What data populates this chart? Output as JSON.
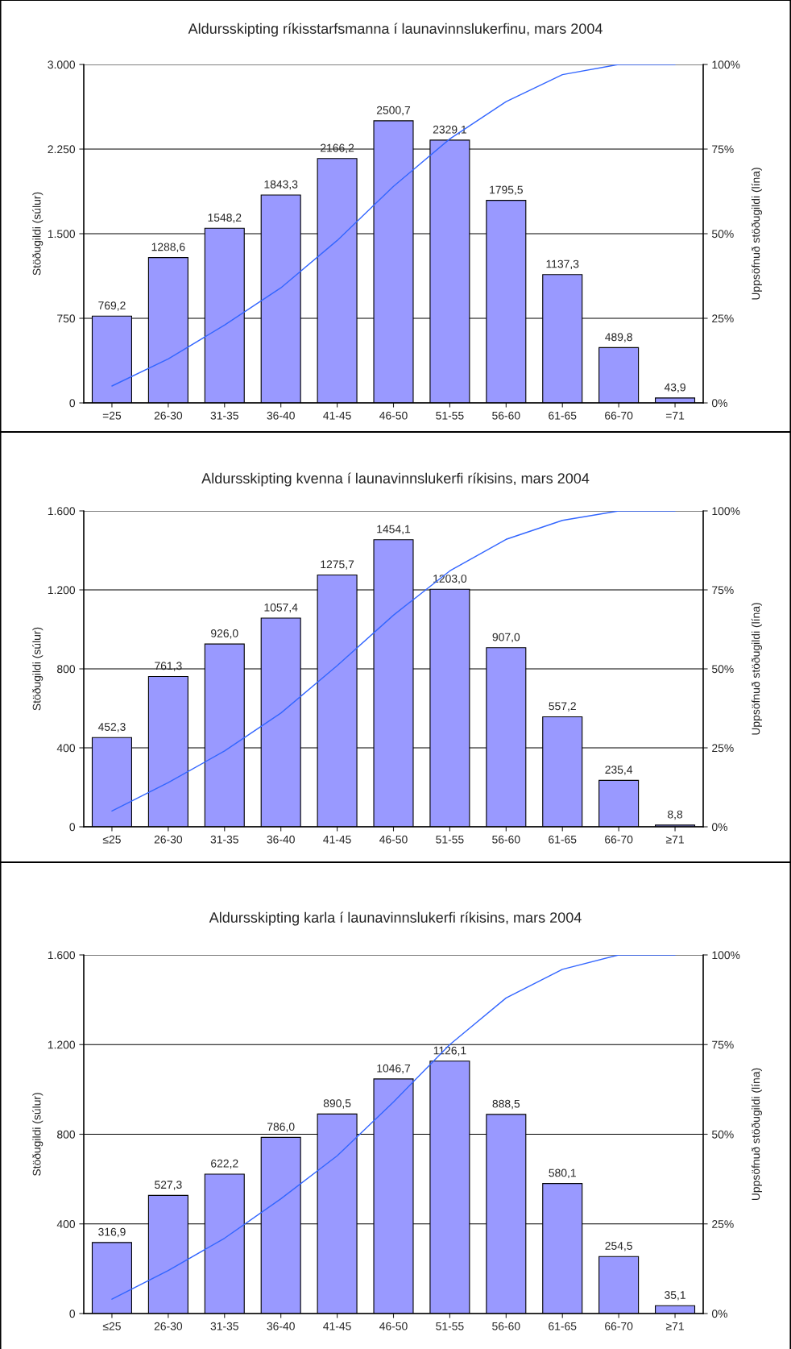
{
  "chart_data": [
    {
      "type": "bar",
      "title": "Aldursskipting ríkisstarfsmanna í launavinnslukerfinu, mars 2004",
      "ylabel": "Stöðugildi (súlur)",
      "y2label": "Uppsöfnuð stöðugildi (lína)",
      "categories": [
        "=25",
        "26-30",
        "31-35",
        "36-40",
        "41-45",
        "46-50",
        "51-55",
        "56-60",
        "61-65",
        "66-70",
        "=71"
      ],
      "series": [
        {
          "color": "#9999ff",
          "values": [
            769.2,
            1288.6,
            1548.2,
            1843.3,
            2166.2,
            2500.7,
            2329.1,
            1795.5,
            1137.3,
            489.8,
            43.9
          ],
          "value_labels": [
            "769,2",
            "1288,6",
            "1548,2",
            "1843,3",
            "2166,2",
            "2500,7",
            "2329,1",
            "1795,5",
            "1137,3",
            "489,8",
            "43,9"
          ]
        },
        {
          "type": "line",
          "axis": "y2",
          "color": "#3366ff",
          "values": [
            5,
            13,
            23,
            34,
            48,
            64,
            78,
            89,
            97,
            100,
            100
          ]
        }
      ],
      "ylim": [
        0,
        3000
      ],
      "yticks": [
        {
          "value": 0,
          "label": "0"
        },
        {
          "value": 750,
          "label": "750"
        },
        {
          "value": 1500,
          "label": "1.500"
        },
        {
          "value": 2250,
          "label": "2.250"
        },
        {
          "value": 3000,
          "label": "3.000"
        }
      ],
      "y2lim": [
        0,
        100
      ],
      "y2ticks": [
        {
          "value": 0,
          "label": "0%"
        },
        {
          "value": 25,
          "label": "25%"
        },
        {
          "value": 50,
          "label": "50%"
        },
        {
          "value": 75,
          "label": "75%"
        },
        {
          "value": 100,
          "label": "100%"
        }
      ],
      "grid": "y",
      "legend": false
    },
    {
      "type": "bar",
      "title": "Aldursskipting kvenna í launavinnslukerfi ríkisins, mars 2004",
      "ylabel": "Stöðugildi (súlur)",
      "y2label": "Uppsöfnuð stöðugildi (lína)",
      "categories": [
        "≤25",
        "26-30",
        "31-35",
        "36-40",
        "41-45",
        "46-50",
        "51-55",
        "56-60",
        "61-65",
        "66-70",
        "≥71"
      ],
      "series": [
        {
          "color": "#9999ff",
          "values": [
            452.3,
            761.3,
            926.0,
            1057.4,
            1275.7,
            1454.1,
            1203.0,
            907.0,
            557.2,
            235.4,
            8.8
          ],
          "value_labels": [
            "452,3",
            "761,3",
            "926,0",
            "1057,4",
            "1275,7",
            "1454,1",
            "1203,0",
            "907,0",
            "557,2",
            "235,4",
            "8,8"
          ]
        },
        {
          "type": "line",
          "axis": "y2",
          "color": "#3366ff",
          "values": [
            5,
            14,
            24,
            36,
            51,
            67,
            81,
            91,
            97,
            100,
            100
          ]
        }
      ],
      "ylim": [
        0,
        1600
      ],
      "yticks": [
        {
          "value": 0,
          "label": "0"
        },
        {
          "value": 400,
          "label": "400"
        },
        {
          "value": 800,
          "label": "800"
        },
        {
          "value": 1200,
          "label": "1.200"
        },
        {
          "value": 1600,
          "label": "1.600"
        }
      ],
      "y2lim": [
        0,
        100
      ],
      "y2ticks": [
        {
          "value": 0,
          "label": "0%"
        },
        {
          "value": 25,
          "label": "25%"
        },
        {
          "value": 50,
          "label": "50%"
        },
        {
          "value": 75,
          "label": "75%"
        },
        {
          "value": 100,
          "label": "100%"
        }
      ],
      "grid": "y",
      "legend": false
    },
    {
      "type": "bar",
      "title": "Aldursskipting karla í launavinnslukerfi ríkisins, mars 2004",
      "ylabel": "Stöðugildi (súlur)",
      "y2label": "Uppsöfnuð stöðugildi (lína)",
      "categories": [
        "≤25",
        "26-30",
        "31-35",
        "36-40",
        "41-45",
        "46-50",
        "51-55",
        "56-60",
        "61-65",
        "66-70",
        "≥71"
      ],
      "series": [
        {
          "color": "#9999ff",
          "values": [
            316.9,
            527.3,
            622.2,
            786.0,
            890.5,
            1046.7,
            1126.1,
            888.5,
            580.1,
            254.5,
            35.1
          ],
          "value_labels": [
            "316,9",
            "527,3",
            "622,2",
            "786,0",
            "890,5",
            "1046,7",
            "1126,1",
            "888,5",
            "580,1",
            "254,5",
            "35,1"
          ]
        },
        {
          "type": "line",
          "axis": "y2",
          "color": "#3366ff",
          "values": [
            4,
            12,
            21,
            32,
            44,
            59,
            75,
            88,
            96,
            100,
            100
          ]
        }
      ],
      "ylim": [
        0,
        1600
      ],
      "yticks": [
        {
          "value": 0,
          "label": "0"
        },
        {
          "value": 400,
          "label": "400"
        },
        {
          "value": 800,
          "label": "800"
        },
        {
          "value": 1200,
          "label": "1.200"
        },
        {
          "value": 1600,
          "label": "1.600"
        }
      ],
      "y2lim": [
        0,
        100
      ],
      "y2ticks": [
        {
          "value": 0,
          "label": "0%"
        },
        {
          "value": 25,
          "label": "25%"
        },
        {
          "value": 50,
          "label": "50%"
        },
        {
          "value": 75,
          "label": "75%"
        },
        {
          "value": 100,
          "label": "100%"
        }
      ],
      "grid": "y",
      "legend": false
    }
  ]
}
